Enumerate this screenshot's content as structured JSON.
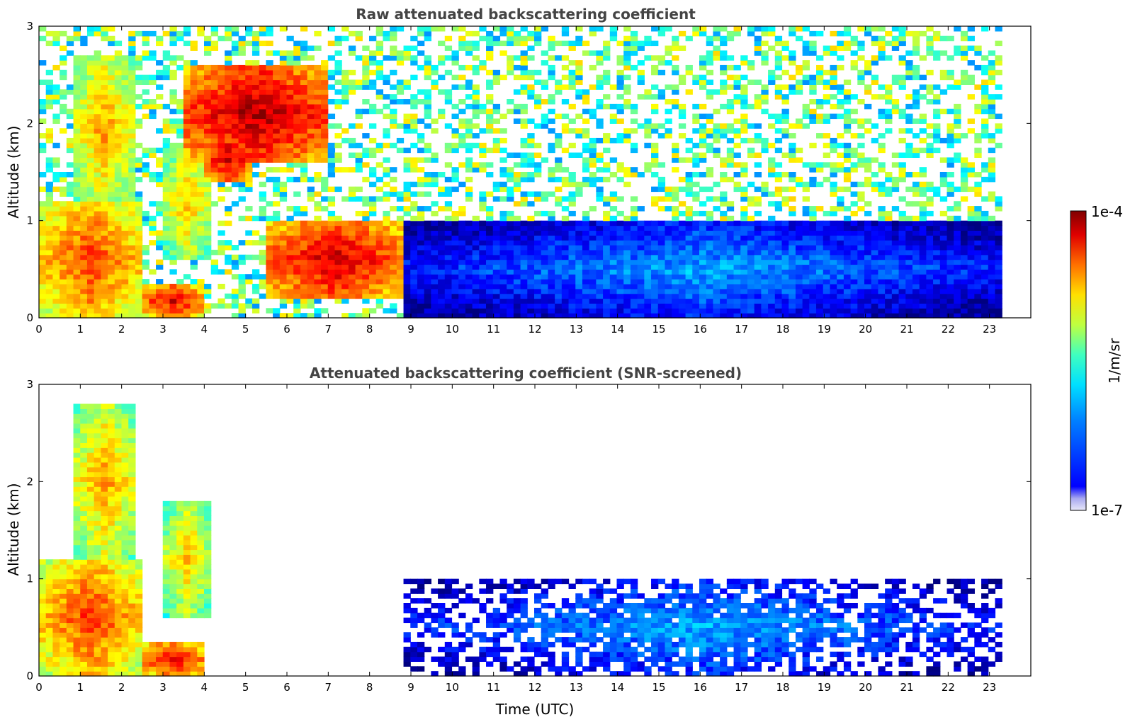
{
  "colorbar": {
    "label": "1/m/sr",
    "max_label": "1e-4",
    "min_label": "1e-7",
    "colormap": "jet",
    "scale": "log",
    "range": [
      1e-07,
      0.0001
    ],
    "min_color": "#e8e8f8"
  },
  "chart_data": [
    {
      "type": "heatmap",
      "title": "Raw attenuated backscattering coefficient",
      "xlabel": "",
      "ylabel": "Altitude (km)",
      "xlim": [
        0,
        24
      ],
      "ylim": [
        0,
        3
      ],
      "xticks": [
        0,
        1,
        2,
        3,
        4,
        5,
        6,
        7,
        8,
        9,
        10,
        11,
        12,
        13,
        14,
        15,
        16,
        17,
        18,
        19,
        20,
        21,
        22,
        23
      ],
      "yticks": [
        0,
        1,
        2,
        3
      ],
      "data_end_time": 23.3,
      "screened": false,
      "features": [
        {
          "name": "boundary_layer_aerosol",
          "time": [
            0,
            2.5
          ],
          "altitude": [
            0,
            1.2
          ],
          "log10_backscatter": -4.5
        },
        {
          "name": "elevated_layer",
          "time": [
            0.8,
            2.4
          ],
          "altitude": [
            1.2,
            2.7
          ],
          "log10_backscatter": -4.8
        },
        {
          "name": "surface_layer",
          "time": [
            2.5,
            4.0
          ],
          "altitude": [
            0,
            0.35
          ],
          "log10_backscatter": -4.3
        },
        {
          "name": "plume",
          "time": [
            3.0,
            4.2
          ],
          "altitude": [
            0.6,
            1.8
          ],
          "log10_backscatter": -4.9
        },
        {
          "name": "cloud_band",
          "time": [
            4.0,
            5.2
          ],
          "altitude": [
            1.4,
            1.9
          ],
          "log10_backscatter": -4.2
        },
        {
          "name": "clouds_upper",
          "time": [
            3.5,
            7.0
          ],
          "altitude": [
            1.6,
            2.6
          ],
          "log10_backscatter": -4.1
        },
        {
          "name": "low_cloud",
          "time": [
            5.5,
            8.8
          ],
          "altitude": [
            0.2,
            1.0
          ],
          "log10_backscatter": -4.2
        },
        {
          "name": "nocturnal_layer",
          "time": [
            8.8,
            23.3
          ],
          "altitude": [
            0,
            1.0
          ],
          "log10_backscatter": -6.1
        }
      ]
    },
    {
      "type": "heatmap",
      "title": "Attenuated backscattering coefficient (SNR-screened)",
      "xlabel": "Time (UTC)",
      "ylabel": "Altitude (km)",
      "xlim": [
        0,
        24
      ],
      "ylim": [
        0,
        3
      ],
      "xticks": [
        0,
        1,
        2,
        3,
        4,
        5,
        6,
        7,
        8,
        9,
        10,
        11,
        12,
        13,
        14,
        15,
        16,
        17,
        18,
        19,
        20,
        21,
        22,
        23
      ],
      "yticks": [
        0,
        1,
        2,
        3
      ],
      "data_end_time": 23.3,
      "screened": true,
      "features": [
        {
          "name": "boundary_layer_aerosol",
          "time": [
            0,
            2.5
          ],
          "altitude": [
            0,
            1.2
          ],
          "log10_backscatter": -4.5
        },
        {
          "name": "elevated_layer",
          "time": [
            0.8,
            2.4
          ],
          "altitude": [
            1.2,
            2.8
          ],
          "log10_backscatter": -4.8
        },
        {
          "name": "surface_layer",
          "time": [
            2.5,
            4.0
          ],
          "altitude": [
            0,
            0.35
          ],
          "log10_backscatter": -4.3
        },
        {
          "name": "plume",
          "time": [
            3.0,
            4.2
          ],
          "altitude": [
            0.6,
            1.8
          ],
          "log10_backscatter": -4.9
        },
        {
          "name": "nocturnal_layer",
          "time": [
            8.8,
            23.3
          ],
          "altitude": [
            0,
            1.0
          ],
          "log10_backscatter": -6.1
        }
      ]
    }
  ]
}
